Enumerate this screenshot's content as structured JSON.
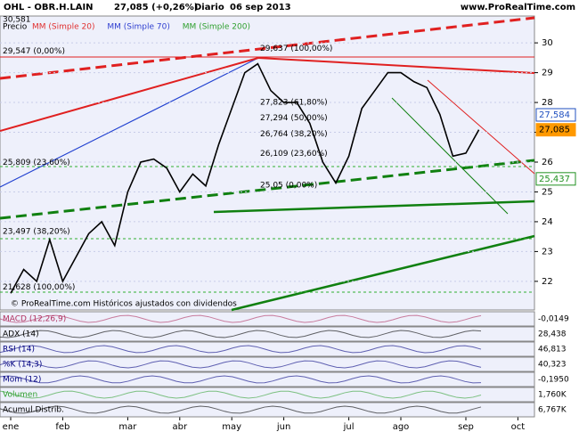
{
  "chart_data": {
    "type": "line",
    "title": "OHL - OBR.H.LAIN",
    "subtitle": "27,085 (+0,26%)",
    "period": "Diario",
    "date": "06 sep 2013",
    "website": "www.ProRealTime.com",
    "footer": "© ProRealTime.com  Históricos ajustados con dividendos",
    "price_label": "Precio",
    "top_label": "30,581",
    "overlay_labels": [
      {
        "text": "MM (Simple 20)",
        "color": "#e03030"
      },
      {
        "text": "MM (Simple 70)",
        "color": "#3040d0"
      },
      {
        "text": "MM (Simple 200)",
        "color": "#30a030"
      }
    ],
    "categories": [
      "ene",
      null,
      null,
      null,
      "feb",
      null,
      null,
      null,
      null,
      "mar",
      null,
      null,
      null,
      "abr",
      null,
      null,
      null,
      "may",
      null,
      null,
      null,
      "jun",
      null,
      null,
      null,
      null,
      "jul",
      null,
      null,
      null,
      "ago",
      null,
      null,
      null,
      null,
      "sep",
      null,
      null,
      null,
      "oct"
    ],
    "series": [
      {
        "name": "OHL",
        "color": "#000000",
        "values": [
          21.6,
          22.4,
          22.0,
          23.4,
          22.0,
          22.8,
          23.6,
          24.0,
          23.2,
          25.0,
          26.0,
          26.1,
          25.8,
          25.0,
          25.6,
          25.2,
          26.6,
          27.8,
          29.0,
          29.3,
          28.4,
          28.0,
          28.0,
          27.3,
          26.0,
          25.3,
          26.2,
          27.8,
          28.4,
          29.0,
          29.0,
          28.7,
          28.5,
          27.6,
          26.2,
          26.3,
          27.085,
          null,
          null,
          null
        ]
      }
    ],
    "ylim": [
      21.04,
      30.9
    ],
    "yticks": [
      22,
      23,
      24,
      25,
      26,
      27,
      28,
      29,
      30
    ],
    "grid": true,
    "price_flags": [
      {
        "value": 27.584,
        "label": "27,584",
        "color": "#2050c0"
      },
      {
        "value": 27.085,
        "label": "27,085",
        "color": "#ff9900"
      },
      {
        "value": 25.437,
        "label": "25,437",
        "color": "#209020"
      }
    ],
    "annotations": [
      {
        "value": 29.547,
        "label": "29,547 (0,00%)",
        "side": "left"
      },
      {
        "value": 29.637,
        "label": "29,637 (100,00%)",
        "side": "mid"
      },
      {
        "value": 27.823,
        "label": "27,823 (61,80%)",
        "side": "mid"
      },
      {
        "value": 27.294,
        "label": "27,294 (50,00%)",
        "side": "mid"
      },
      {
        "value": 26.764,
        "label": "26,764 (38,20%)",
        "side": "mid"
      },
      {
        "value": 26.109,
        "label": "26,109 (23,60%)",
        "side": "mid"
      },
      {
        "value": 25.05,
        "label": "25,05 (0,00%)",
        "side": "mid"
      },
      {
        "value": 25.809,
        "label": "25,809 (23,60%)",
        "side": "left"
      },
      {
        "value": 23.497,
        "label": "23,497 (38,20%)",
        "side": "left"
      },
      {
        "value": 21.628,
        "label": "21,628 (100,00%)",
        "side": "left"
      }
    ],
    "indicators": [
      {
        "name": "MACD (12,26,9)",
        "value": "-0,0149",
        "color": "#b03060"
      },
      {
        "name": "ADX (14)",
        "value": "28,438",
        "color": "#000000"
      },
      {
        "name": "RSI (14)",
        "value": "46,813",
        "color": "#000080"
      },
      {
        "name": "%K (14,3)",
        "value": "40,323",
        "color": "#000080"
      },
      {
        "name": "Mom (12)",
        "value": "-0,1950",
        "color": "#000080"
      },
      {
        "name": "Volumen",
        "value": "1,760K",
        "color": "#30a030"
      },
      {
        "name": "Acumul.Distrib.",
        "value": "6,767K",
        "color": "#000000"
      }
    ]
  }
}
